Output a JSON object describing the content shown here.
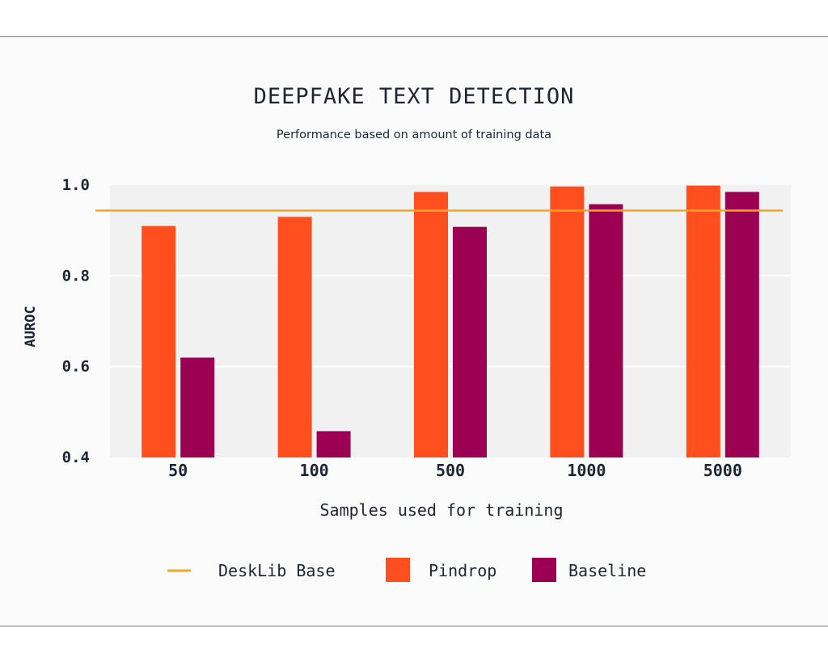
{
  "colors": {
    "pindrop": "#ff4f1f",
    "baseline": "#9b0053",
    "desklib": "#f5a623",
    "plot_bg": "#f1f1f1",
    "text": "#1d2433"
  },
  "chart_data": {
    "type": "bar",
    "title": "DEEPFAKE TEXT DETECTION",
    "subtitle": "Performance based on amount of training data",
    "xlabel": "Samples used for training",
    "ylabel": "AUROC",
    "ylim": [
      0.4,
      1.0
    ],
    "yticks": [
      "1.0",
      "0.8",
      "0.6",
      "0.4"
    ],
    "ytick_values": [
      1.0,
      0.8,
      0.6,
      0.4
    ],
    "grid": true,
    "legend_position": "bottom",
    "categories": [
      "50",
      "100",
      "500",
      "1000",
      "5000"
    ],
    "series": [
      {
        "name": "Pindrop",
        "color": "#ff4f1f",
        "values": [
          0.91,
          0.93,
          0.985,
          0.997,
          0.999
        ]
      },
      {
        "name": "Baseline",
        "color": "#9b0053",
        "values": [
          0.62,
          0.458,
          0.908,
          0.958,
          0.985
        ]
      }
    ],
    "reference_line": {
      "name": "DeskLib Base",
      "color": "#f5a623",
      "value": 0.944
    }
  }
}
